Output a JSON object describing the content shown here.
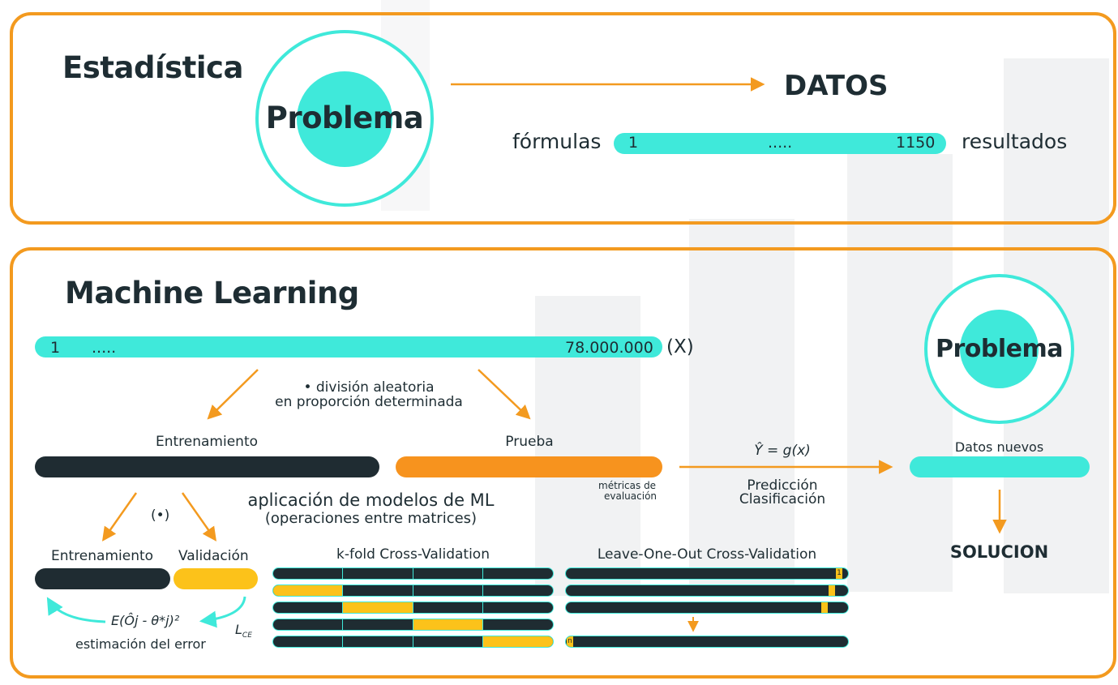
{
  "estadistica": {
    "title": "Estadística",
    "problem_label": "Problema",
    "datos_label": "DATOS",
    "formulas_label": "fórmulas",
    "bar_start": "1",
    "bar_mid": ".....",
    "bar_end": "1150",
    "resultados_label": "resultados"
  },
  "ml": {
    "title": "Machine Learning",
    "bar_start": "1",
    "bar_mid": ".....",
    "bar_end": "78.000.000",
    "x_label": "(X)",
    "split_line1": "• división aleatoria",
    "split_line2": "en proporción determinada",
    "train_label": "Entrenamiento",
    "test_label": "Prueba",
    "models_line1": "aplicación de modelos de ML",
    "models_line2": "(operaciones entre matrices)",
    "metrics_line1": "métricas de",
    "metrics_line2": "evaluación",
    "formula_label": "Ŷ = g(x)",
    "prediction_line1": "Predicción",
    "prediction_line2": "Clasificación",
    "new_data_label": "Datos nuevos",
    "problem_label": "Problema",
    "solution_label": "SOLUCION",
    "dot_label": "(•)",
    "sub_train_label": "Entrenamiento",
    "validation_label": "Validación",
    "error_formula": "E(Ôj - θ*j)²",
    "error_label": "estimación del error",
    "lce_label": "L",
    "lce_sub": "CE",
    "kfold_label": "k-fold Cross-Validation",
    "loo_label": "Leave-One-Out Cross-Validation",
    "loo_mark_top": "1",
    "loo_mark_bottom": "n"
  },
  "colors": {
    "accent_orange": "#f39a1f",
    "teal": "#3fe9da",
    "dark": "#1f2c32",
    "yellow": "#fcc21a"
  }
}
